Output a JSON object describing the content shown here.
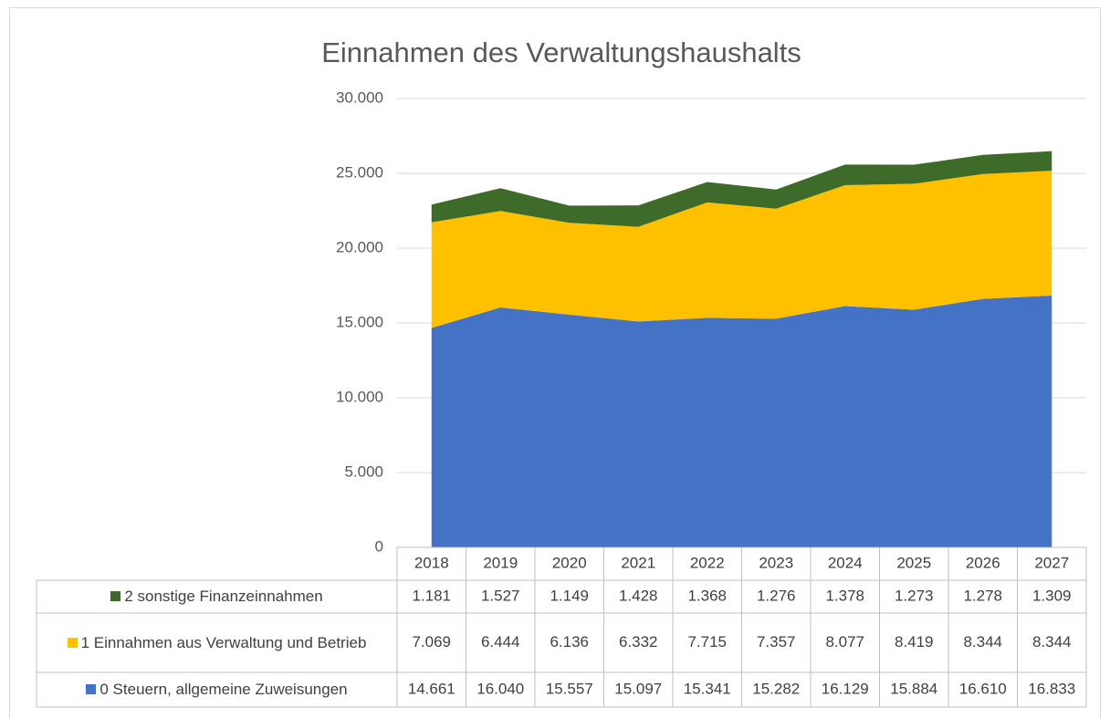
{
  "chart_data": {
    "type": "stacked_area",
    "title": "Einnahmen des Verwaltungshaushalts",
    "categories": [
      "2018",
      "2019",
      "2020",
      "2021",
      "2022",
      "2023",
      "2024",
      "2025",
      "2026",
      "2027"
    ],
    "series": [
      {
        "name": "0 Steuern, allgemeine Zuweisungen",
        "color": "#4472c4",
        "values": [
          14661,
          16040,
          15557,
          15097,
          15341,
          15282,
          16129,
          15884,
          16610,
          16833
        ],
        "value_labels": [
          "14.661",
          "16.040",
          "15.557",
          "15.097",
          "15.341",
          "15.282",
          "16.129",
          "15.884",
          "16.610",
          "16.833"
        ]
      },
      {
        "name": "1 Einnahmen aus Verwaltung und Betrieb",
        "color": "#ffc000",
        "values": [
          7069,
          6444,
          6136,
          6332,
          7715,
          7357,
          8077,
          8419,
          8344,
          8344
        ],
        "value_labels": [
          "7.069",
          "6.444",
          "6.136",
          "6.332",
          "7.715",
          "7.357",
          "8.077",
          "8.419",
          "8.344",
          "8.344"
        ]
      },
      {
        "name": "2 sonstige Finanzeinnahmen",
        "color": "#3e6b2a",
        "values": [
          1181,
          1527,
          1149,
          1428,
          1368,
          1276,
          1378,
          1273,
          1278,
          1309
        ],
        "value_labels": [
          "1.181",
          "1.527",
          "1.149",
          "1.428",
          "1.368",
          "1.276",
          "1.378",
          "1.273",
          "1.278",
          "1.309"
        ]
      }
    ],
    "ylim": [
      0,
      30000
    ],
    "yticks": [
      0,
      {
        "value": 5000,
        "label": "5.000"
      },
      {
        "value": 10000,
        "label": "10.000"
      },
      {
        "value": 15000,
        "label": "15.000"
      },
      {
        "value": 20000,
        "label": "20.000"
      },
      {
        "value": 25000,
        "label": "25.000"
      },
      {
        "value": 30000,
        "label": "30.000"
      }
    ],
    "grid": true
  }
}
